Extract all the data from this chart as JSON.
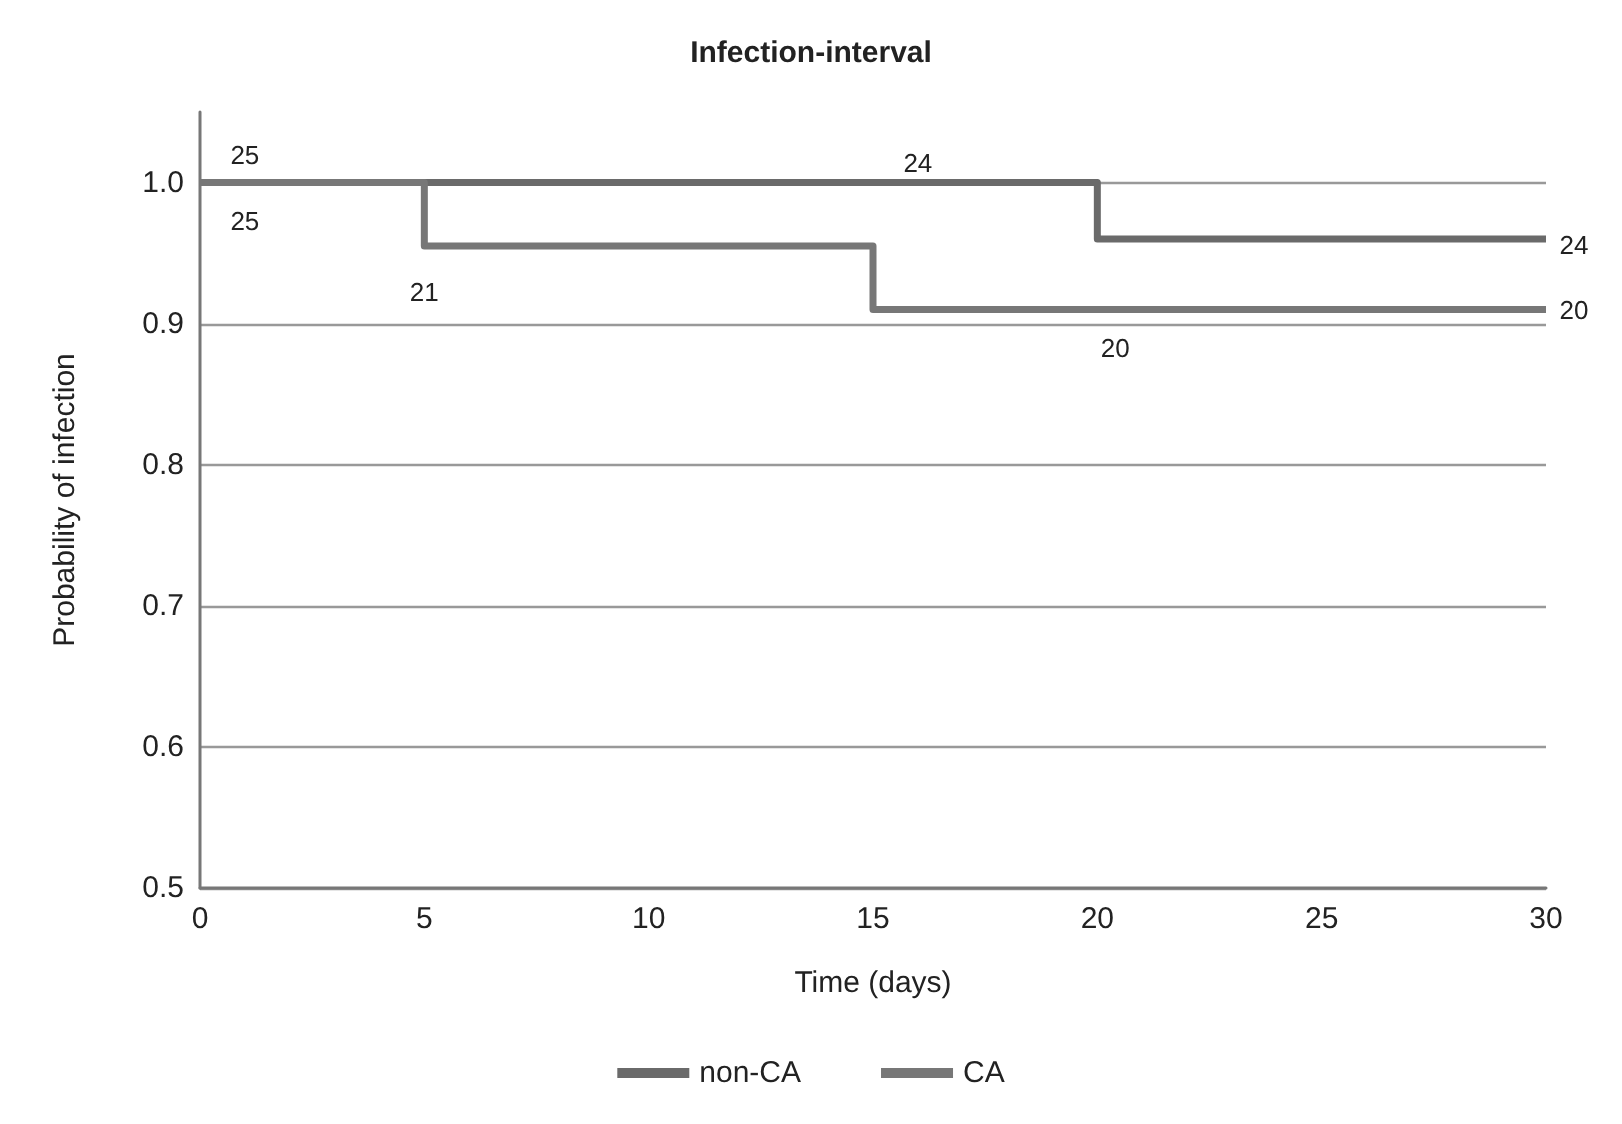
{
  "chart_data": {
    "type": "step",
    "title": "Infection-interval",
    "xlabel": "Time (days)",
    "ylabel": "Probability of infection",
    "x": [
      0,
      5,
      15,
      20,
      30
    ],
    "series": [
      {
        "name": "non-CA",
        "color": "#6a6a6a",
        "values": [
          1,
          1,
          1,
          0.96,
          0.96
        ]
      },
      {
        "name": "CA",
        "color": "#777777",
        "values": [
          1,
          0.955,
          0.91,
          0.91,
          0.91
        ]
      }
    ],
    "xlim": [
      0,
      30
    ],
    "xticks": [
      0,
      5,
      10,
      15,
      20,
      25,
      30
    ],
    "ylim": [
      0.5,
      1.05
    ],
    "yticks": [
      0.5,
      0.6,
      0.7,
      0.8,
      0.9,
      {
        "value": 1,
        "label": "1.0"
      }
    ],
    "grid": "y",
    "legend": "bottom",
    "marker": "none",
    "line_style": "solid",
    "annotations": [
      {
        "text": "25",
        "x": 1,
        "y": 1
      },
      {
        "text": "24",
        "x": 16,
        "y": 1
      },
      {
        "text": "25",
        "x": 1,
        "y": 1
      },
      {
        "text": "21",
        "x": 5,
        "y": 0.955
      },
      {
        "text": "24",
        "x": 30,
        "y": 0.96
      },
      {
        "text": "20",
        "x": 30,
        "y": 0.91
      },
      {
        "text": "20",
        "x": 20.4,
        "y": 0.91
      }
    ]
  }
}
